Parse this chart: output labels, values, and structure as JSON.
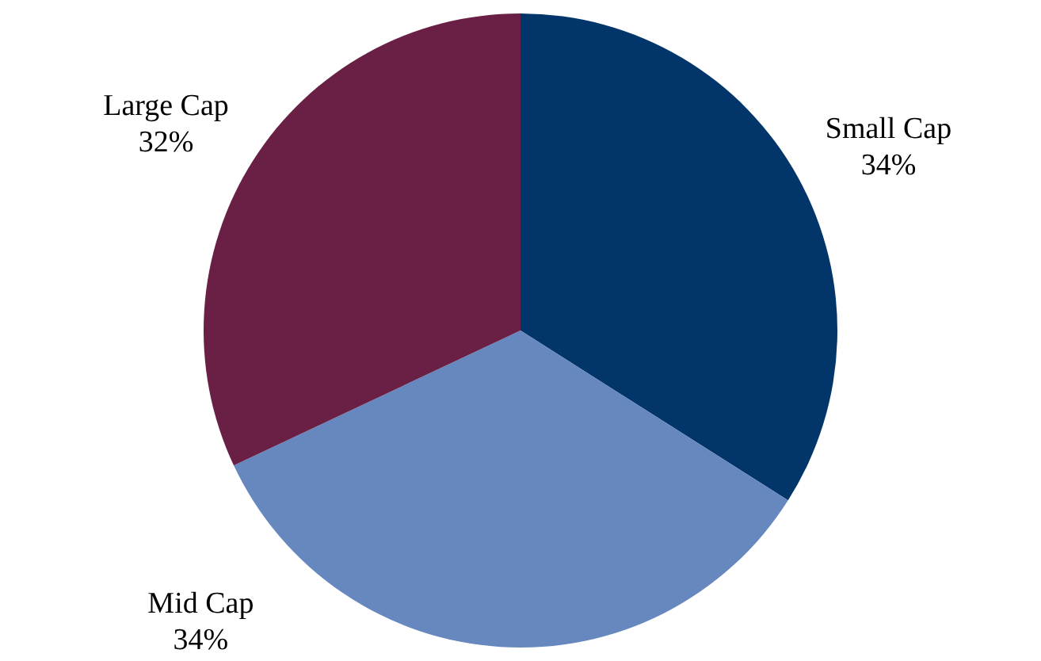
{
  "chart_data": {
    "type": "pie",
    "categories": [
      "Small Cap",
      "Mid Cap",
      "Large Cap"
    ],
    "values": [
      34,
      34,
      32
    ],
    "value_labels": [
      "34%",
      "34%",
      "32%"
    ],
    "colors": [
      "#02366a",
      "#6688bf",
      "#6a2045"
    ]
  }
}
